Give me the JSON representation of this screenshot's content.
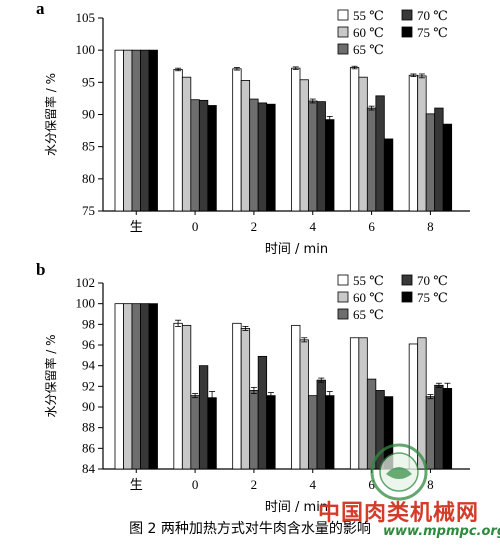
{
  "figure": {
    "caption": "图 2 两种加热方式对牛肉含水量的影响",
    "watermark_text": "中国肉类机械网",
    "watermark_url": "www.mpmpc.org",
    "watermark_color": "#d43c2a"
  },
  "chart_data": [
    {
      "type": "bar",
      "panel_label": "a",
      "xlabel": "时间 / min",
      "ylabel": "水分保留率 / %",
      "ylim": [
        75,
        105
      ],
      "yticks": [
        75,
        80,
        85,
        90,
        95,
        100,
        105
      ],
      "categories": [
        "生",
        "0",
        "2",
        "4",
        "6",
        "8"
      ],
      "legend_position": "top-right",
      "series": [
        {
          "name": "55 ℃",
          "color": "#ffffff",
          "values": [
            100,
            97.0,
            97.1,
            97.2,
            97.3,
            96.1
          ],
          "errors": [
            0,
            0.2,
            0.2,
            0.2,
            0.2,
            0.2
          ]
        },
        {
          "name": "60 ℃",
          "color": "#c8c8c8",
          "values": [
            100,
            95.8,
            95.3,
            95.4,
            95.8,
            96.0
          ],
          "errors": [
            0,
            0,
            0,
            0,
            0,
            0.3
          ]
        },
        {
          "name": "65 ℃",
          "color": "#6e6e6e",
          "values": [
            100,
            92.3,
            92.4,
            92.1,
            91.0,
            90.1
          ],
          "errors": [
            0,
            0,
            0,
            0.3,
            0.3,
            0
          ]
        },
        {
          "name": "70 ℃",
          "color": "#383838",
          "values": [
            100,
            92.2,
            91.8,
            92.0,
            92.9,
            91.0
          ],
          "errors": [
            0,
            0,
            0,
            0,
            0,
            0
          ]
        },
        {
          "name": "75 ℃",
          "color": "#000000",
          "values": [
            100,
            91.4,
            91.6,
            89.2,
            86.2,
            88.5
          ],
          "errors": [
            0,
            0,
            0,
            0.5,
            0,
            0
          ]
        }
      ]
    },
    {
      "type": "bar",
      "panel_label": "b",
      "xlabel": "时间 / min",
      "ylabel": "水分保留率 / %",
      "ylim": [
        84,
        102
      ],
      "yticks": [
        84,
        86,
        88,
        90,
        92,
        94,
        96,
        98,
        100,
        102
      ],
      "categories": [
        "生",
        "0",
        "2",
        "4",
        "6",
        "8"
      ],
      "legend_position": "top-right",
      "series": [
        {
          "name": "55 ℃",
          "color": "#ffffff",
          "values": [
            100,
            98.1,
            98.1,
            97.9,
            96.7,
            96.1
          ],
          "errors": [
            0,
            0.3,
            0,
            0,
            0,
            0
          ]
        },
        {
          "name": "60 ℃",
          "color": "#c8c8c8",
          "values": [
            100,
            97.9,
            97.6,
            96.5,
            96.7,
            96.7
          ],
          "errors": [
            0,
            0,
            0.2,
            0.2,
            0,
            0
          ]
        },
        {
          "name": "65 ℃",
          "color": "#6e6e6e",
          "values": [
            100,
            91.1,
            91.6,
            91.1,
            92.7,
            91.0
          ],
          "errors": [
            0,
            0.2,
            0.3,
            0,
            0,
            0.2
          ]
        },
        {
          "name": "70 ℃",
          "color": "#383838",
          "values": [
            100,
            94.0,
            94.9,
            92.6,
            91.6,
            92.1
          ],
          "errors": [
            0,
            0,
            0,
            0.2,
            0,
            0.2
          ]
        },
        {
          "name": "75 ℃",
          "color": "#000000",
          "values": [
            100,
            90.9,
            91.1,
            91.1,
            91.0,
            91.8
          ],
          "errors": [
            0,
            0.6,
            0.3,
            0.4,
            0,
            0.5
          ]
        }
      ]
    }
  ]
}
